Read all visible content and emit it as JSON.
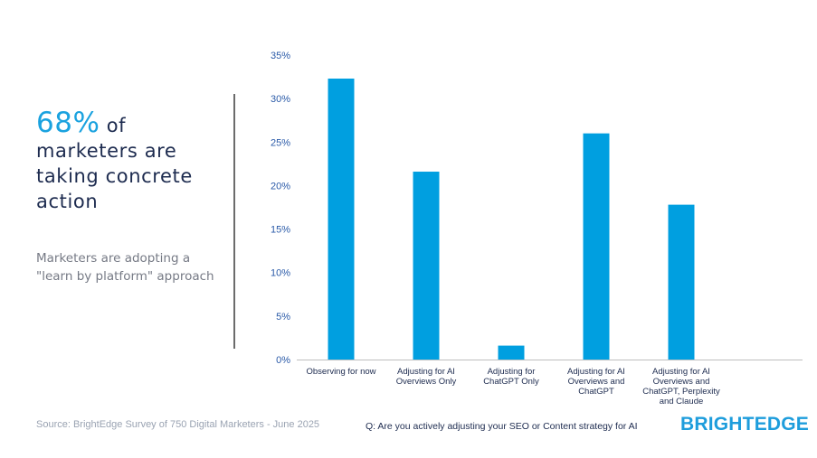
{
  "headline": {
    "stat": "68%",
    "stat_suffix": "of",
    "rest": "marketers are taking concrete action"
  },
  "subhead": "Marketers are adopting a \"learn by platform\" approach",
  "footer": {
    "source": "Source: BrightEdge Survey of 750 Digital Marketers - June 2025",
    "question": "Q:  Are you actively adjusting your SEO or Content strategy for AI",
    "logo": "BRIGHTEDGE"
  },
  "colors": {
    "bar": "#009fe0",
    "axis_text": "#2a5aa8",
    "accent": "#1aa2df",
    "navy": "#1d2b4f"
  },
  "chart_data": {
    "type": "bar",
    "title": "",
    "xlabel": "",
    "ylabel": "",
    "categories": [
      [
        "Observing for now"
      ],
      [
        "Adjusting for AI",
        "Overviews Only"
      ],
      [
        "Adjusting for",
        "ChatGPT Only"
      ],
      [
        "Adjusting for AI",
        "Overviews and",
        "ChatGPT"
      ],
      [
        "Adjusting for AI",
        "Overviews and",
        "ChatGPT, Perplexity",
        "and Claude"
      ]
    ],
    "values": [
      32.3,
      21.6,
      1.6,
      26.0,
      17.8
    ],
    "ylim": [
      0,
      35
    ],
    "yticks": [
      0,
      5,
      10,
      15,
      20,
      25,
      30,
      35
    ],
    "ytick_labels": [
      "0%",
      "5%",
      "10%",
      "15%",
      "20%",
      "25%",
      "30%",
      "35%"
    ],
    "grid": false,
    "legend": "none"
  }
}
